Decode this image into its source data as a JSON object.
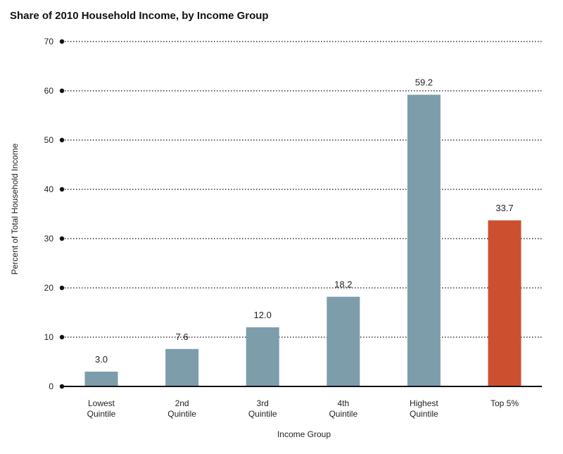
{
  "chart_data": {
    "type": "bar",
    "title": "Share of 2010 Household Income, by Income Group",
    "xlabel": "Income Group",
    "ylabel": "Percent of Total Household Income",
    "ylim": [
      0,
      70
    ],
    "yticks": [
      "0",
      "10",
      "20",
      "30",
      "40",
      "50",
      "60",
      "70"
    ],
    "grid": true,
    "categories": [
      [
        "Lowest",
        "Quintile"
      ],
      [
        "2nd",
        "Quintile"
      ],
      [
        "3rd",
        "Quintile"
      ],
      [
        "4th",
        "Quintile"
      ],
      [
        "Highest",
        "Quintile"
      ],
      [
        "Top 5%"
      ]
    ],
    "values": [
      3.0,
      7.6,
      12.0,
      18.2,
      59.2,
      33.7
    ],
    "value_labels": [
      "3.0",
      "7.6",
      "12.0",
      "18.2",
      "59.2",
      "33.7"
    ],
    "bar_colors": [
      "#7d9dab",
      "#7d9dab",
      "#7d9dab",
      "#7d9dab",
      "#7d9dab",
      "#cc5030"
    ]
  }
}
